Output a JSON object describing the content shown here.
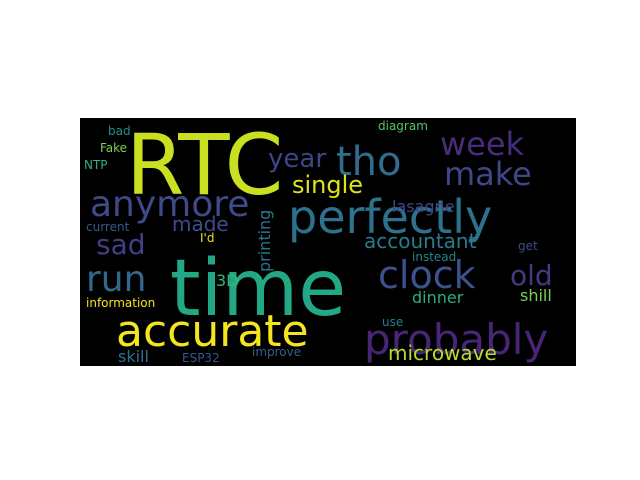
{
  "words": [
    {
      "text": "RTC",
      "color": "#c8e020"
    },
    {
      "text": "time",
      "color": "#22a884"
    },
    {
      "text": "perfectly",
      "color": "#2c728e"
    },
    {
      "text": "accurate",
      "color": "#f4e61e"
    },
    {
      "text": "probably",
      "color": "#482576"
    },
    {
      "text": "clock",
      "color": "#3b528b"
    },
    {
      "text": "tho",
      "color": "#2f6c8e"
    },
    {
      "text": "week",
      "color": "#472d7b"
    },
    {
      "text": "anymore",
      "color": "#3e4a89"
    },
    {
      "text": "run",
      "color": "#31688e"
    },
    {
      "text": "make",
      "color": "#3f4788"
    },
    {
      "text": "sad",
      "color": "#433e85"
    },
    {
      "text": "year",
      "color": "#414487"
    },
    {
      "text": "single",
      "color": "#dde318"
    },
    {
      "text": "old",
      "color": "#443a83"
    },
    {
      "text": "accountant",
      "color": "#287c8e"
    },
    {
      "text": "microwave",
      "color": "#b5de2b"
    },
    {
      "text": "made",
      "color": "#3e4c8a"
    },
    {
      "text": "printing",
      "color": "#2a768e"
    },
    {
      "text": "lasagne",
      "color": "#404688"
    },
    {
      "text": "3D",
      "color": "#35b779"
    },
    {
      "text": "dinner",
      "color": "#2ab07f"
    },
    {
      "text": "shill",
      "color": "#7ad151"
    },
    {
      "text": "skill",
      "color": "#2c718e"
    },
    {
      "text": "ESP32",
      "color": "#3a548c"
    },
    {
      "text": "improve",
      "color": "#365d8d"
    },
    {
      "text": "information",
      "color": "#f1e51d"
    },
    {
      "text": "current",
      "color": "#38598c"
    },
    {
      "text": "I'd",
      "color": "#e8e419"
    },
    {
      "text": "instead",
      "color": "#25848e"
    },
    {
      "text": "get",
      "color": "#3d4e8a"
    },
    {
      "text": "use",
      "color": "#27808e"
    },
    {
      "text": "bad",
      "color": "#21908d"
    },
    {
      "text": "Fake",
      "color": "#7ad151"
    },
    {
      "text": "NTP",
      "color": "#2fb47c"
    },
    {
      "text": "diagram",
      "color": "#52c569"
    }
  ]
}
